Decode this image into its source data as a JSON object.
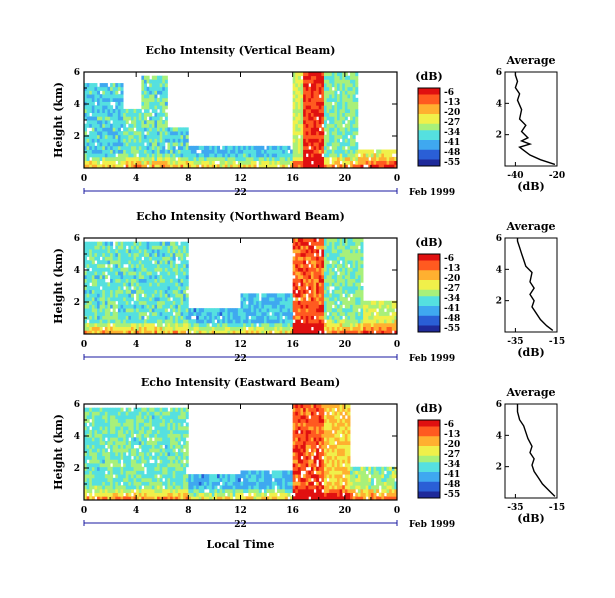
{
  "figure": {
    "xlabel": "Local Time",
    "date_label": "Feb 1999",
    "colorbar_unit": "(dB)",
    "colormap": [
      "#1f2a9a",
      "#2a5fd6",
      "#3fa8f0",
      "#55e0e0",
      "#a8f07a",
      "#f0f04a",
      "#ffb030",
      "#ff5a20",
      "#e01010"
    ]
  },
  "chart_data": [
    {
      "type": "heatmap",
      "title": "Echo Intensity (Vertical Beam)",
      "xlabel": "",
      "ylabel": "Height (km)",
      "xticks": [
        "0",
        "4",
        "8",
        "12",
        "16",
        "20",
        "0"
      ],
      "xlim": [
        0,
        24
      ],
      "day_label": "22",
      "yticks": [
        "2",
        "4",
        "6"
      ],
      "ylim": [
        0,
        6
      ],
      "colorbar_ticks": [
        "-6",
        "-13",
        "-20",
        "-27",
        "-34",
        "-41",
        "-48",
        "-55"
      ],
      "colorbar_range_db": [
        -55,
        -6
      ],
      "echo_segments": [
        {
          "t0": 0.0,
          "t1": 3.0,
          "top_km": 5.4,
          "intensity": 0.35
        },
        {
          "t0": 3.0,
          "t1": 4.5,
          "top_km": 3.6,
          "intensity": 0.42
        },
        {
          "t0": 4.5,
          "t1": 6.5,
          "top_km": 5.8,
          "intensity": 0.4
        },
        {
          "t0": 6.5,
          "t1": 8.0,
          "top_km": 2.6,
          "intensity": 0.38
        },
        {
          "t0": 8.0,
          "t1": 16.0,
          "top_km": 1.4,
          "intensity": 0.3
        },
        {
          "t0": 16.0,
          "t1": 16.8,
          "top_km": 6.0,
          "intensity": 0.55
        },
        {
          "t0": 16.8,
          "t1": 18.5,
          "top_km": 6.0,
          "intensity": 0.92
        },
        {
          "t0": 18.5,
          "t1": 21.0,
          "top_km": 6.0,
          "intensity": 0.45
        },
        {
          "t0": 21.0,
          "t1": 24.0,
          "top_km": 1.2,
          "intensity": 0.6
        }
      ]
    },
    {
      "type": "line",
      "title": "Average",
      "xlabel": "(dB)",
      "ylabel": "",
      "xticks": [
        "-40",
        "-20"
      ],
      "xlim": [
        -45,
        -20
      ],
      "yticks": [
        "2",
        "4",
        "6"
      ],
      "ylim": [
        0,
        6
      ],
      "x": [
        -21,
        -28,
        -33,
        -36,
        -38,
        -33,
        -37,
        -34,
        -37,
        -35,
        -38,
        -37,
        -39,
        -38,
        -40,
        -39,
        -40,
        -40
      ],
      "y": [
        0.1,
        0.4,
        0.7,
        1.0,
        1.2,
        1.4,
        1.6,
        1.8,
        2.2,
        2.6,
        3.0,
        3.6,
        4.2,
        4.6,
        5.0,
        5.4,
        5.8,
        6.0
      ]
    },
    {
      "type": "heatmap",
      "title": "Echo Intensity (Northward Beam)",
      "xlabel": "",
      "ylabel": "Height (km)",
      "xticks": [
        "0",
        "4",
        "8",
        "12",
        "16",
        "20",
        "0"
      ],
      "xlim": [
        0,
        24
      ],
      "day_label": "22",
      "yticks": [
        "2",
        "4",
        "6"
      ],
      "ylim": [
        0,
        6
      ],
      "colorbar_ticks": [
        "-6",
        "-13",
        "-20",
        "-27",
        "-34",
        "-41",
        "-48",
        "-55"
      ],
      "colorbar_range_db": [
        -55,
        -6
      ],
      "echo_segments": [
        {
          "t0": 0.0,
          "t1": 8.0,
          "top_km": 5.8,
          "intensity": 0.4
        },
        {
          "t0": 8.0,
          "t1": 12.0,
          "top_km": 1.5,
          "intensity": 0.28
        },
        {
          "t0": 12.0,
          "t1": 16.0,
          "top_km": 2.6,
          "intensity": 0.3
        },
        {
          "t0": 16.0,
          "t1": 18.5,
          "top_km": 6.0,
          "intensity": 0.88
        },
        {
          "t0": 18.5,
          "t1": 21.5,
          "top_km": 6.0,
          "intensity": 0.45
        },
        {
          "t0": 21.5,
          "t1": 24.0,
          "top_km": 2.0,
          "intensity": 0.55
        }
      ]
    },
    {
      "type": "line",
      "title": "Average",
      "xlabel": "(dB)",
      "ylabel": "",
      "xticks": [
        "-35",
        "-15"
      ],
      "xlim": [
        -40,
        -15
      ],
      "yticks": [
        "2",
        "4",
        "6"
      ],
      "ylim": [
        0,
        6
      ],
      "x": [
        -17,
        -20,
        -23,
        -25,
        -27,
        -26,
        -28,
        -26,
        -28,
        -27,
        -30,
        -31,
        -32,
        -33,
        -34,
        -34
      ],
      "y": [
        0.1,
        0.4,
        0.8,
        1.2,
        1.6,
        2.0,
        2.4,
        2.8,
        3.2,
        3.8,
        4.2,
        4.6,
        5.0,
        5.4,
        5.8,
        6.0
      ]
    },
    {
      "type": "heatmap",
      "title": "Echo Intensity (Eastward Beam)",
      "xlabel": "",
      "ylabel": "Height (km)",
      "xticks": [
        "0",
        "4",
        "8",
        "12",
        "16",
        "20",
        "0"
      ],
      "xlim": [
        0,
        24
      ],
      "day_label": "22",
      "yticks": [
        "2",
        "4",
        "6"
      ],
      "ylim": [
        0,
        6
      ],
      "colorbar_ticks": [
        "-6",
        "-13",
        "-20",
        "-27",
        "-34",
        "-41",
        "-48",
        "-55"
      ],
      "colorbar_range_db": [
        -55,
        -6
      ],
      "echo_segments": [
        {
          "t0": 0.0,
          "t1": 8.0,
          "top_km": 5.8,
          "intensity": 0.42
        },
        {
          "t0": 8.0,
          "t1": 12.0,
          "top_km": 1.6,
          "intensity": 0.28
        },
        {
          "t0": 12.0,
          "t1": 16.0,
          "top_km": 1.8,
          "intensity": 0.3
        },
        {
          "t0": 16.0,
          "t1": 18.5,
          "top_km": 6.0,
          "intensity": 0.88
        },
        {
          "t0": 18.5,
          "t1": 20.5,
          "top_km": 6.0,
          "intensity": 0.7
        },
        {
          "t0": 20.5,
          "t1": 24.0,
          "top_km": 2.0,
          "intensity": 0.5
        }
      ]
    },
    {
      "type": "line",
      "title": "Average",
      "xlabel": "(dB)",
      "ylabel": "",
      "xticks": [
        "-35",
        "-15"
      ],
      "xlim": [
        -40,
        -15
      ],
      "yticks": [
        "2",
        "4",
        "6"
      ],
      "ylim": [
        0,
        6
      ],
      "x": [
        -16,
        -19,
        -22,
        -24,
        -26,
        -27,
        -26,
        -28,
        -27,
        -29,
        -30,
        -31,
        -33,
        -34,
        -34
      ],
      "y": [
        0.1,
        0.5,
        0.9,
        1.3,
        1.7,
        2.1,
        2.5,
        2.9,
        3.3,
        3.8,
        4.2,
        4.6,
        5.0,
        5.5,
        6.0
      ]
    }
  ]
}
